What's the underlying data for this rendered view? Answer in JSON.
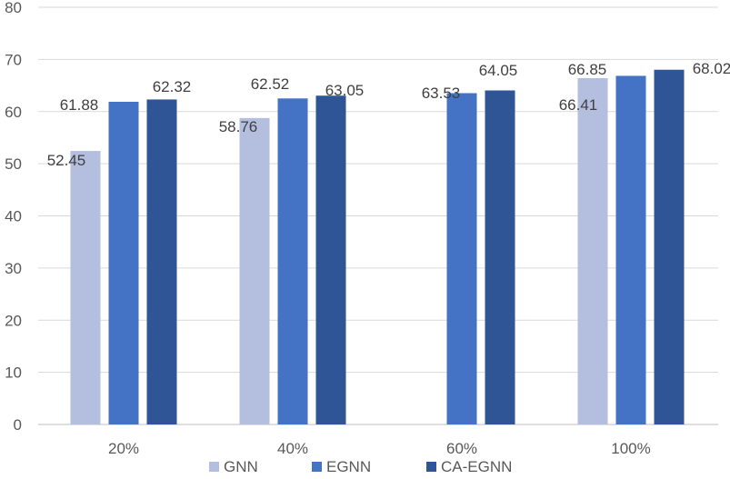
{
  "chart_data": {
    "type": "bar",
    "title": "",
    "xlabel": "",
    "ylabel": "",
    "categories": [
      "20%",
      "40%",
      "60%",
      "100%"
    ],
    "ylim": [
      0,
      80
    ],
    "yticks": [
      0,
      10,
      20,
      30,
      40,
      50,
      60,
      70,
      80
    ],
    "grid": true,
    "legend_position": "bottom",
    "series": [
      {
        "name": "GNN",
        "color": "#b4bfdf",
        "values": [
          52.45,
          58.76,
          null,
          66.41
        ],
        "labels": [
          "52.45",
          "58.76",
          "",
          "66.41"
        ]
      },
      {
        "name": "EGNN",
        "color": "#4472c4",
        "values": [
          61.88,
          62.52,
          63.53,
          66.85
        ],
        "labels": [
          "61.88",
          "62.52",
          "63.53",
          "66.85"
        ]
      },
      {
        "name": "CA-EGNN",
        "color": "#2f5597",
        "values": [
          62.32,
          63.05,
          64.05,
          68.02
        ],
        "labels": [
          "62.32",
          "63.05",
          "64.05",
          "68.02"
        ]
      }
    ]
  }
}
